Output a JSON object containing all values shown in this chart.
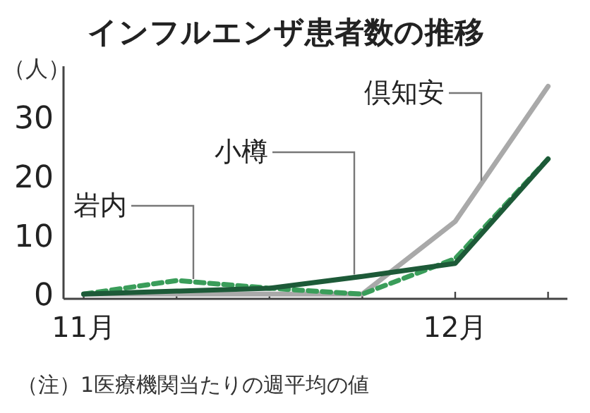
{
  "chart_data": {
    "type": "line",
    "title": "インフルエンザ患者数の推移",
    "ylabel": "（人）",
    "categories": [
      "11月",
      null,
      null,
      null,
      "12月",
      null
    ],
    "series": [
      {
        "name": "倶知安",
        "color": "#a9a9a9",
        "values": [
          0,
          0,
          0,
          0,
          12.3,
          35.2
        ]
      },
      {
        "name": "岩内",
        "color": "#3a9d5a",
        "line_style": "dashed",
        "values": [
          0,
          2.3,
          1,
          0,
          6,
          22.9
        ]
      },
      {
        "name": "小樽",
        "color": "#1d5a38",
        "values": [
          0,
          0.5,
          1,
          3,
          5.2,
          22.9
        ]
      }
    ],
    "ylim": [
      -0.8,
      38.6
    ],
    "yticks": [
      0,
      10,
      20,
      30
    ],
    "grid": false,
    "legend": false,
    "annotations": [
      "（注）1医療機関当たりの週平均の値"
    ]
  }
}
